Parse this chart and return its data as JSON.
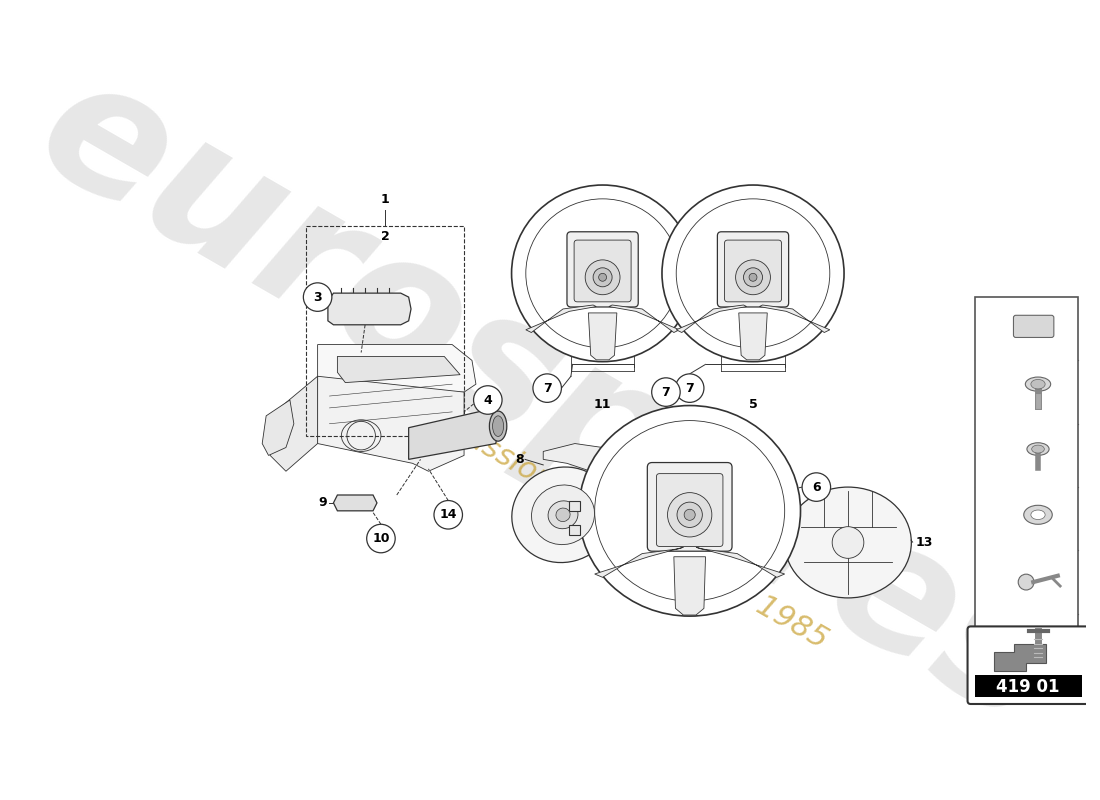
{
  "bg_color": "#ffffff",
  "watermark_color": "#d0d0d0",
  "watermark_alpha": 0.5,
  "watermark_subtext_color": "#c8a030",
  "part_number_box_text": "419 01",
  "line_color": "#333333",
  "label_fontsize": 9,
  "sidebar_items": [
    {
      "num": "14"
    },
    {
      "num": "10"
    },
    {
      "num": "7"
    },
    {
      "num": "6"
    },
    {
      "num": "4"
    },
    {
      "num": "3"
    }
  ]
}
